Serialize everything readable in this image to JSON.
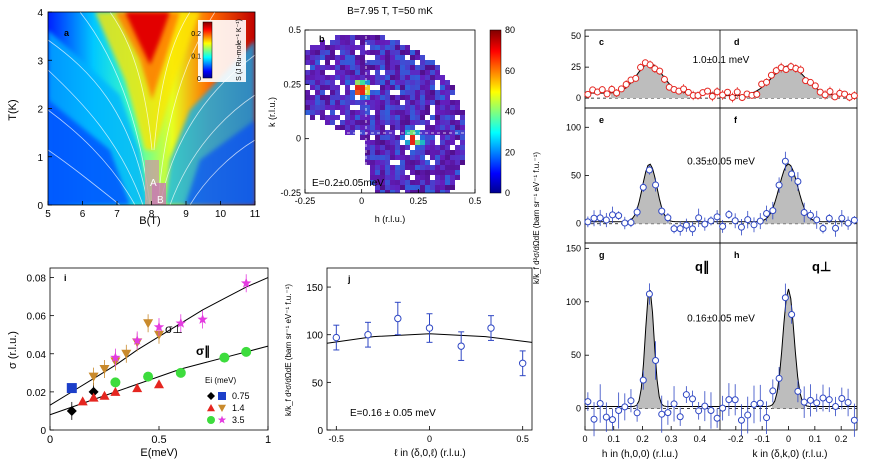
{
  "chart_data": [
    {
      "id": "a",
      "type": "heatmap",
      "xlabel": "B(T)",
      "ylabel": "T(K)",
      "xlim": [
        5,
        11
      ],
      "ylim": [
        0,
        4
      ],
      "xticks": [
        "5",
        "6",
        "7",
        "8",
        "9",
        "10",
        "11"
      ],
      "yticks": [
        "0",
        "1",
        "2",
        "3",
        "4"
      ],
      "colorbar_label": "S (J Ru-mole⁻¹ K⁻¹)",
      "colorbar_ticks": [
        "0",
        "0.1",
        "0.2"
      ],
      "colorbar_range": [
        0,
        0.25
      ],
      "annotations": [
        "A",
        "B"
      ]
    },
    {
      "id": "b",
      "type": "heatmap",
      "title": "B=7.95 T, T=50 mK",
      "xlabel": "h (r.l.u.)",
      "ylabel": "k (r.l.u.)",
      "xlim": [
        -0.25,
        0.5
      ],
      "ylim": [
        -0.25,
        0.5
      ],
      "xticks": [
        "-0.25",
        "0",
        "0.25",
        "0.5"
      ],
      "yticks": [
        "-0.25",
        "0",
        "0.25",
        "0.5"
      ],
      "colorbar_ticks": [
        "0",
        "20",
        "40",
        "60",
        "80"
      ],
      "colorbar_range": [
        0,
        80
      ],
      "peaks": [
        {
          "h": 0,
          "k": 0.23
        },
        {
          "h": 0.23,
          "k": 0
        }
      ],
      "energy_label": "E=0.2±0.05meV"
    },
    {
      "id": "cdefgh",
      "type": "scatter",
      "ylabel": "k/k_f d²σ/dΩdE (barn sr⁻¹ eV⁻¹ f.u.⁻¹)",
      "left_xlabel": "h in (h,0,0) (r.l.u.)",
      "right_xlabel": "k in (δ,k,0) (r.l.u.)",
      "left_xticks": [
        "0",
        "0.1",
        "0.2",
        "0.3",
        "0.4"
      ],
      "right_xticks": [
        "-0.2",
        "-0.1",
        "0",
        "0.1",
        "0.2"
      ],
      "panels": [
        {
          "label_left": "c",
          "label_right": "d",
          "energy": "1.0±0.1 meV",
          "yticks": [
            "0",
            "25",
            "50"
          ],
          "ylim": [
            -8,
            55
          ],
          "color": "#e52620",
          "peak": 24,
          "width": 0.045
        },
        {
          "label_left": "e",
          "label_right": "f",
          "energy": "0.35±0.05 meV",
          "yticks": [
            "0",
            "50",
            "100"
          ],
          "ylim": [
            -20,
            120
          ],
          "color": "#2f47c4",
          "peak": 60,
          "width": 0.025
        },
        {
          "label_left": "g",
          "label_right": "h",
          "energy": "0.16±0.05 meV",
          "yticks": [
            "0",
            "50",
            "100",
            "150"
          ],
          "ylim": [
            -20,
            155
          ],
          "color": "#2f47c4",
          "peak": 110,
          "width": 0.015
        }
      ],
      "q_par": "q∥",
      "q_perp": "q⊥"
    },
    {
      "id": "i",
      "type": "scatter",
      "xlabel": "E(meV)",
      "ylabel": "σ (r.l.u.)",
      "xlim": [
        0,
        1
      ],
      "ylim": [
        0,
        0.085
      ],
      "xticks": [
        "0",
        "0.5",
        "1"
      ],
      "yticks": [
        "0",
        "0.02",
        "0.04",
        "0.06",
        "0.08"
      ],
      "curve_labels": [
        "σ⊥",
        "σ∥"
      ],
      "legend_title": "Ei (meV)",
      "legend": [
        {
          "name": "0.75",
          "color": "#000000",
          "color2": "#1c3fc9"
        },
        {
          "name": "1.4",
          "color": "#e52620",
          "color2": "#c98a2c"
        },
        {
          "name": "3.5",
          "color": "#3ddc3d",
          "color2": "#e43be0"
        }
      ],
      "series": [
        {
          "name": "σ⊥ 0.75",
          "marker": "square",
          "color": "#1c3fc9",
          "x": [
            0.1
          ],
          "y": [
            0.022
          ]
        },
        {
          "name": "σ∥ 0.75",
          "marker": "diamond",
          "color": "#000000",
          "x": [
            0.1,
            0.2
          ],
          "y": [
            0.01,
            0.02
          ]
        },
        {
          "name": "σ⊥ 1.4",
          "marker": "tri-down",
          "color": "#c98a2c",
          "x": [
            0.2,
            0.25,
            0.3,
            0.35,
            0.4,
            0.45,
            0.5
          ],
          "y": [
            0.028,
            0.032,
            0.036,
            0.04,
            0.046,
            0.056,
            0.05
          ]
        },
        {
          "name": "σ∥ 1.4",
          "marker": "tri-up",
          "color": "#e52620",
          "x": [
            0.15,
            0.2,
            0.25,
            0.3,
            0.4,
            0.5
          ],
          "y": [
            0.015,
            0.017,
            0.018,
            0.02,
            0.022,
            0.024
          ]
        },
        {
          "name": "σ⊥ 3.5",
          "marker": "star",
          "color": "#e43be0",
          "x": [
            0.3,
            0.4,
            0.5,
            0.6,
            0.7,
            0.9
          ],
          "y": [
            0.038,
            0.047,
            0.054,
            0.056,
            0.058,
            0.077
          ]
        },
        {
          "name": "σ∥ 3.5",
          "marker": "circle",
          "color": "#3ddc3d",
          "x": [
            0.3,
            0.45,
            0.6,
            0.8,
            0.9
          ],
          "y": [
            0.025,
            0.028,
            0.03,
            0.038,
            0.041
          ]
        }
      ],
      "fits": [
        {
          "name": "σ⊥ fit",
          "x": [
            0,
            0.1,
            0.2,
            0.3,
            0.4,
            0.5,
            0.6,
            0.7,
            0.8,
            0.9,
            1.0
          ],
          "y": [
            0.013,
            0.02,
            0.027,
            0.034,
            0.042,
            0.049,
            0.056,
            0.063,
            0.069,
            0.075,
            0.08
          ]
        },
        {
          "name": "σ∥ fit",
          "x": [
            0,
            0.1,
            0.2,
            0.3,
            0.4,
            0.5,
            0.6,
            0.7,
            0.8,
            0.9,
            1.0
          ],
          "y": [
            0.008,
            0.012,
            0.016,
            0.02,
            0.024,
            0.028,
            0.032,
            0.035,
            0.038,
            0.041,
            0.044
          ]
        }
      ]
    },
    {
      "id": "j",
      "type": "scatter",
      "xlabel": "ℓ in (δ,0,ℓ) (r.l.u.)",
      "ylabel": "k/k_f d²σ/dΩdE (barn sr⁻¹ eV⁻¹ f.u.⁻¹)",
      "xlim": [
        -0.55,
        0.55
      ],
      "ylim": [
        0,
        170
      ],
      "xticks": [
        "-0.5",
        "0",
        "0.5"
      ],
      "yticks": [
        "0",
        "50",
        "100",
        "150"
      ],
      "energy_label": "E=0.16 ± 0.05 meV",
      "x": [
        -0.5,
        -0.33,
        -0.17,
        0,
        0.17,
        0.33,
        0.5
      ],
      "y": [
        97,
        100,
        117,
        107,
        88,
        107,
        70
      ],
      "err": [
        13,
        13,
        17,
        15,
        15,
        13,
        13
      ],
      "fit": {
        "x": [
          -0.55,
          -0.3,
          0,
          0.3,
          0.55
        ],
        "y": [
          91,
          98,
          101,
          98,
          92
        ]
      }
    }
  ]
}
